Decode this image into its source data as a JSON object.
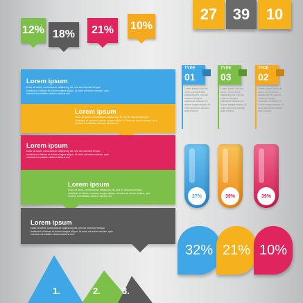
{
  "percent_tags": [
    {
      "label": "12%",
      "color": "#7cc04a"
    },
    {
      "label": "18%",
      "color": "#5a5a5a"
    },
    {
      "label": "21%",
      "color": "#e0245e"
    },
    {
      "label": "10%",
      "color": "#f5a91c"
    }
  ],
  "number_squares": [
    {
      "label": "27",
      "color": "#f5b21c"
    },
    {
      "label": "39",
      "color": "#6a6a6a"
    },
    {
      "label": "10",
      "color": "#f5b21c"
    }
  ],
  "ribbons": [
    {
      "title": "Lorem ipsum",
      "text": "Dolor sit amet, consectetuer adipiscing elit, sed do eiusmod tempor incididunt ut labore et dolore magna aliqua. Ut enim ad minim veniam, quis nostrud exercitation ullamco laboris nisi.",
      "color": "#3fa7e6"
    },
    {
      "title": "Lorem ipsum",
      "text": "Dolor sit amet, consectetuer adipiscing elit, sed do eiusmod tempor incididunt ut labore et dolore magna aliqua. Ut enim ad minim veniam, quis nostrud exercitation ullamco laboris nisi.",
      "color": "#f5b21c"
    },
    {
      "title": "Lorem ipsum",
      "text": "Dolor sit amet, consectetuer adipiscing elit, sed do eiusmod tempor incididunt ut labore et dolore magna aliqua. Ut enim ad minim veniam, quis nostrud exercitation ullamco laboris nisi.",
      "color": "#e0245e"
    },
    {
      "title": "Lorem ipsum",
      "text": "Dolor sit amet, consectetuer adipiscing elit, sed do eiusmod tempor incididunt ut labore et dolore magna aliqua. Ut enim ad minim veniam, quis nostrud exercitation ullamco laboris nisi.",
      "color": "#7cc04a"
    },
    {
      "title": "Lorem ipsum",
      "text": "Dolor sit amet, consectetuer adipiscing elit, sed do eiusmod tempor incididunt ut labore et dolore magna aliqua. Ut enim ad minim veniam, quis nostrud exercitation ullamco laboris nisi.",
      "color": "#5a5a5a"
    }
  ],
  "types": [
    {
      "label": "TYPE",
      "number": "01",
      "text": "Lorem ipsum dolor sit amet, consectetuer adipiscing elit, sed do eiusmod tempor incididunt ut labore et dolore magna aliqua. Ut enim ad minim veniam, quis nostrud.",
      "color": "#3fa7e6"
    },
    {
      "label": "TYPE",
      "number": "03",
      "text": "Lorem ipsum dolor sit amet, consectetuer adipiscing elit, sed do eiusmod tempor incididunt ut labore et dolore magna aliqua. Ut enim ad minim veniam, quis nostrud.",
      "color": "#7cc04a"
    },
    {
      "label": "TYPE",
      "number": "02",
      "text": "Lorem ipsum dolor sit amet, consectetuer adipiscing elit, sed do eiusmod tempor incididunt ut labore et dolore magna aliqua. Ut enim ad minim veniam, quis nostrud.",
      "color": "#f5a91c"
    }
  ],
  "pills": [
    {
      "label": "27%",
      "color": "#3fa7e6"
    },
    {
      "label": "39%",
      "color": "#f5a91c"
    },
    {
      "label": "39%",
      "color": "#e0245e"
    }
  ],
  "circle_tags": [
    {
      "label": "32%",
      "color": "#3fa7e6"
    },
    {
      "label": "21%",
      "color": "#f5b21c"
    },
    {
      "label": "10%",
      "color": "#e0245e"
    }
  ],
  "triangles": [
    {
      "label": "1.",
      "color": "#3fa7e6"
    },
    {
      "label": "2.",
      "color": "#7cc04a"
    },
    {
      "label": "3.",
      "color": "#5a5a5a"
    }
  ]
}
